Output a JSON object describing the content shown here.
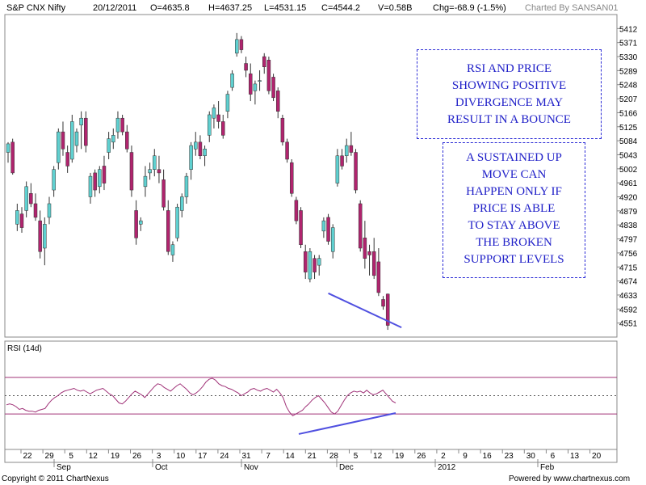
{
  "header": {
    "symbol": "S&P CNX Nifty",
    "date": "20/12/2011",
    "open": "O=4635.8",
    "high": "H=4637.25",
    "low": "L=4531.15",
    "close": "C=4544.2",
    "volume": "V=0.58B",
    "change": "Chg=-68.9 (-1.5%)",
    "charted_by": "Charted By SANSAN01"
  },
  "annotations": {
    "divergence": "RSI AND PRICE\nSHOWING POSITIVE\nDIVERGENCE MAY\nRESULT IN A BOUNCE",
    "sustained": "A SUSTAINED UP\nMOVE CAN\nHAPPEN ONLY IF\nPRICE IS ABLE\nTO STAY ABOVE\nTHE BROKEN\nSUPPORT LEVELS"
  },
  "footer": {
    "copyright": "Copyright © 2011 ChartNexus",
    "powered": "Powered by www.chartnexus.com"
  },
  "colors": {
    "up": "#5fd0d0",
    "down": "#b0246e",
    "trendline": "#5050e0",
    "rsi_line": "#a03278",
    "frame": "#888888"
  },
  "chart_data": [
    {
      "type": "candlestick",
      "title": "S&P CNX Nifty",
      "y_ticks": [
        5412,
        5371,
        5330,
        5289,
        5248,
        5207,
        5166,
        5125,
        5084,
        5043,
        5002,
        4961,
        4920,
        4879,
        4838,
        4797,
        4756,
        4715,
        4674,
        4633,
        4592,
        4551
      ],
      "ylim": [
        4510,
        5453
      ],
      "x_tick_labels": [
        "22",
        "29",
        "5",
        "12",
        "19",
        "26",
        "3",
        "10",
        "17",
        "24",
        "31",
        "7",
        "14",
        "21",
        "28",
        "5",
        "12",
        "19",
        "26",
        "2",
        "9",
        "16",
        "23",
        "30",
        "6",
        "13",
        "20"
      ],
      "month_labels": [
        "Sep",
        "Oct",
        "Nov",
        "Dec",
        "2012",
        "Feb"
      ],
      "candles": [
        {
          "o": 5050,
          "h": 5080,
          "l": 5020,
          "c": 5075
        },
        {
          "o": 5080,
          "h": 5090,
          "l": 4985,
          "c": 4990
        },
        {
          "o": 4840,
          "h": 4900,
          "l": 4820,
          "c": 4880
        },
        {
          "o": 4870,
          "h": 4890,
          "l": 4815,
          "c": 4830
        },
        {
          "o": 4880,
          "h": 4965,
          "l": 4860,
          "c": 4950
        },
        {
          "o": 4930,
          "h": 4960,
          "l": 4890,
          "c": 4900
        },
        {
          "o": 4900,
          "h": 4930,
          "l": 4850,
          "c": 4860
        },
        {
          "o": 4850,
          "h": 4880,
          "l": 4740,
          "c": 4760
        },
        {
          "o": 4770,
          "h": 4860,
          "l": 4720,
          "c": 4840
        },
        {
          "o": 4860,
          "h": 4920,
          "l": 4840,
          "c": 4900
        },
        {
          "o": 4940,
          "h": 5010,
          "l": 4920,
          "c": 5000
        },
        {
          "o": 5020,
          "h": 5120,
          "l": 5000,
          "c": 5110
        },
        {
          "o": 5110,
          "h": 5140,
          "l": 5040,
          "c": 5060
        },
        {
          "o": 5050,
          "h": 5070,
          "l": 4990,
          "c": 5010
        },
        {
          "o": 5030,
          "h": 5160,
          "l": 5020,
          "c": 5140
        },
        {
          "o": 5070,
          "h": 5120,
          "l": 5050,
          "c": 5110
        },
        {
          "o": 5130,
          "h": 5170,
          "l": 5060,
          "c": 5150
        },
        {
          "o": 5150,
          "h": 5170,
          "l": 5050,
          "c": 5070
        },
        {
          "o": 4920,
          "h": 4990,
          "l": 4900,
          "c": 4980
        },
        {
          "o": 4990,
          "h": 5000,
          "l": 4920,
          "c": 4940
        },
        {
          "o": 4950,
          "h": 5010,
          "l": 4930,
          "c": 5000
        },
        {
          "o": 5010,
          "h": 5040,
          "l": 4940,
          "c": 4960
        },
        {
          "o": 5050,
          "h": 5110,
          "l": 5030,
          "c": 5090
        },
        {
          "o": 5080,
          "h": 5120,
          "l": 5060,
          "c": 5100
        },
        {
          "o": 5110,
          "h": 5170,
          "l": 5090,
          "c": 5150
        },
        {
          "o": 5150,
          "h": 5160,
          "l": 5100,
          "c": 5110
        },
        {
          "o": 5110,
          "h": 5130,
          "l": 5050,
          "c": 5060
        },
        {
          "o": 5050,
          "h": 5070,
          "l": 4920,
          "c": 4940
        },
        {
          "o": 4880,
          "h": 4910,
          "l": 4780,
          "c": 4800
        },
        {
          "o": 4840,
          "h": 4860,
          "l": 4820,
          "c": 4850
        },
        {
          "o": 4950,
          "h": 5010,
          "l": 4920,
          "c": 4980
        },
        {
          "o": 4990,
          "h": 5020,
          "l": 4970,
          "c": 5000
        },
        {
          "o": 5000,
          "h": 5060,
          "l": 4980,
          "c": 5040
        },
        {
          "o": 5000,
          "h": 5040,
          "l": 4960,
          "c": 4990
        },
        {
          "o": 4970,
          "h": 5000,
          "l": 4880,
          "c": 4890
        },
        {
          "o": 4880,
          "h": 4910,
          "l": 4750,
          "c": 4760
        },
        {
          "o": 4750,
          "h": 4790,
          "l": 4730,
          "c": 4780
        },
        {
          "o": 4800,
          "h": 4900,
          "l": 4790,
          "c": 4890
        },
        {
          "o": 4880,
          "h": 4930,
          "l": 4860,
          "c": 4920
        },
        {
          "o": 4920,
          "h": 4990,
          "l": 4900,
          "c": 4980
        },
        {
          "o": 5000,
          "h": 5080,
          "l": 4970,
          "c": 5070
        },
        {
          "o": 5060,
          "h": 5110,
          "l": 5040,
          "c": 5080
        },
        {
          "o": 5080,
          "h": 5100,
          "l": 5030,
          "c": 5040
        },
        {
          "o": 5040,
          "h": 5070,
          "l": 5010,
          "c": 5060
        },
        {
          "o": 5100,
          "h": 5170,
          "l": 5080,
          "c": 5160
        },
        {
          "o": 5150,
          "h": 5190,
          "l": 5120,
          "c": 5180
        },
        {
          "o": 5160,
          "h": 5200,
          "l": 5120,
          "c": 5140
        },
        {
          "o": 5140,
          "h": 5160,
          "l": 5090,
          "c": 5100
        },
        {
          "o": 5170,
          "h": 5230,
          "l": 5150,
          "c": 5220
        },
        {
          "o": 5240,
          "h": 5290,
          "l": 5230,
          "c": 5280
        },
        {
          "o": 5340,
          "h": 5399,
          "l": 5330,
          "c": 5380
        },
        {
          "o": 5380,
          "h": 5390,
          "l": 5340,
          "c": 5350
        },
        {
          "o": 5310,
          "h": 5330,
          "l": 5270,
          "c": 5290
        },
        {
          "o": 5280,
          "h": 5310,
          "l": 5200,
          "c": 5220
        },
        {
          "o": 5230,
          "h": 5260,
          "l": 5190,
          "c": 5250
        },
        {
          "o": 5260,
          "h": 5290,
          "l": 5230,
          "c": 5260
        },
        {
          "o": 5330,
          "h": 5340,
          "l": 5280,
          "c": 5300
        },
        {
          "o": 5320,
          "h": 5330,
          "l": 5220,
          "c": 5230
        },
        {
          "o": 5270,
          "h": 5280,
          "l": 5200,
          "c": 5210
        },
        {
          "o": 5230,
          "h": 5240,
          "l": 5150,
          "c": 5170
        },
        {
          "o": 5150,
          "h": 5160,
          "l": 5070,
          "c": 5080
        },
        {
          "o": 5080,
          "h": 5090,
          "l": 5020,
          "c": 5030
        },
        {
          "o": 5020,
          "h": 5030,
          "l": 4920,
          "c": 4930
        },
        {
          "o": 4910,
          "h": 4920,
          "l": 4840,
          "c": 4850
        },
        {
          "o": 4880,
          "h": 4890,
          "l": 4770,
          "c": 4780
        },
        {
          "o": 4760,
          "h": 4780,
          "l": 4680,
          "c": 4700
        },
        {
          "o": 4680,
          "h": 4770,
          "l": 4670,
          "c": 4760
        },
        {
          "o": 4740,
          "h": 4750,
          "l": 4680,
          "c": 4700
        },
        {
          "o": 4720,
          "h": 4750,
          "l": 4690,
          "c": 4740
        },
        {
          "o": 4820,
          "h": 4860,
          "l": 4800,
          "c": 4850
        },
        {
          "o": 4860,
          "h": 4870,
          "l": 4780,
          "c": 4790
        },
        {
          "o": 4760,
          "h": 4840,
          "l": 4740,
          "c": 4830
        },
        {
          "o": 4960,
          "h": 5060,
          "l": 4950,
          "c": 5040
        },
        {
          "o": 5040,
          "h": 5060,
          "l": 5000,
          "c": 5010
        },
        {
          "o": 5040,
          "h": 5090,
          "l": 5020,
          "c": 5070
        },
        {
          "o": 5070,
          "h": 5110,
          "l": 5040,
          "c": 5050
        },
        {
          "o": 5050,
          "h": 5060,
          "l": 4930,
          "c": 4940
        },
        {
          "o": 4900,
          "h": 4910,
          "l": 4760,
          "c": 4770
        },
        {
          "o": 4800,
          "h": 4850,
          "l": 4710,
          "c": 4740
        },
        {
          "o": 4760,
          "h": 4780,
          "l": 4690,
          "c": 4750
        },
        {
          "o": 4760,
          "h": 4800,
          "l": 4680,
          "c": 4690
        },
        {
          "o": 4730,
          "h": 4770,
          "l": 4630,
          "c": 4640
        },
        {
          "o": 4620,
          "h": 4630,
          "l": 4590,
          "c": 4600
        },
        {
          "o": 4635.8,
          "h": 4637.25,
          "l": 4531.15,
          "c": 4544.2
        }
      ],
      "trendline": {
        "from": {
          "candle": 70,
          "price": 4638
        },
        "to": {
          "candle": 86,
          "price": 4538
        }
      }
    },
    {
      "type": "line",
      "title": "RSI (14d)",
      "ylim": [
        0,
        100
      ],
      "reference_levels": [
        70,
        50,
        30
      ],
      "series": [
        {
          "name": "RSI (14d)",
          "values": [
            40,
            41,
            40,
            38,
            35,
            36,
            34,
            33,
            33,
            32,
            34,
            35,
            36,
            41,
            45,
            48,
            50,
            53,
            55,
            56,
            57,
            58,
            56,
            55,
            56,
            54,
            52,
            54,
            56,
            57,
            58,
            55,
            52,
            50,
            46,
            42,
            41,
            44,
            48,
            52,
            55,
            53,
            51,
            48,
            52,
            56,
            60,
            63,
            62,
            59,
            57,
            55,
            58,
            61,
            63,
            60,
            57,
            53,
            51,
            53,
            56,
            60,
            65,
            68,
            69,
            67,
            63,
            61,
            60,
            58,
            57,
            55,
            53,
            50,
            52,
            54,
            57,
            58,
            56,
            55,
            57,
            58,
            56,
            54,
            57,
            53,
            48,
            38,
            32,
            28,
            30,
            32,
            34,
            38,
            41,
            45,
            48,
            50,
            46,
            42,
            37,
            32,
            30,
            33,
            39,
            45,
            50,
            53,
            55,
            54,
            55,
            53,
            56,
            53,
            51,
            52,
            54,
            56,
            52,
            48,
            44,
            42
          ]
        }
      ],
      "trendline": {
        "from": {
          "t": 0.56,
          "rsi": 8
        },
        "to": {
          "t": 1.0,
          "rsi": 31
        }
      }
    }
  ]
}
